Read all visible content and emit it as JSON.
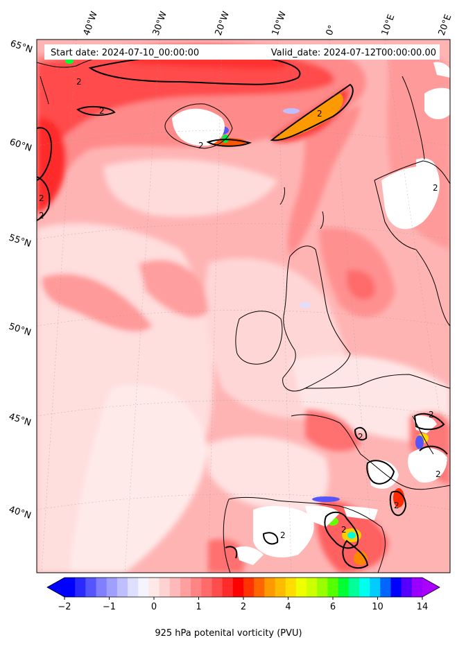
{
  "header": {
    "start_date": "Start date: 2024-07-10_00:00:00",
    "valid_date": "Valid_date: 2024-07-12T00:00:00.00"
  },
  "lon_labels": [
    "40°W",
    "30°W",
    "20°W",
    "10°W",
    "0°",
    "10°E",
    "20°E"
  ],
  "lat_labels": [
    "65°N",
    "60°N",
    "55°N",
    "50°N",
    "45°N",
    "40°N"
  ],
  "contour_label": "2",
  "colorbar": {
    "title": "925 hPa potenital vorticity (PVU)",
    "tick_labels": [
      "−2",
      "−1",
      "0",
      "1",
      "2",
      "4",
      "6",
      "10",
      "14"
    ],
    "colors": [
      "#0000ff",
      "#2a2aff",
      "#5555ff",
      "#7f7fff",
      "#9f9fff",
      "#bfbfff",
      "#dedeff",
      "#f4f4ff",
      "#ffe8e8",
      "#ffd2d2",
      "#ffb9b9",
      "#ff9f9f",
      "#ff8484",
      "#ff6a6a",
      "#ff4d4d",
      "#ff2a2a",
      "#ff0000",
      "#ff3300",
      "#ff6600",
      "#ff9900",
      "#ffbb00",
      "#ffdd00",
      "#eeff00",
      "#ccff00",
      "#99ff00",
      "#55ff00",
      "#00ff33",
      "#00ff99",
      "#00ffee",
      "#00ccff",
      "#0066ff",
      "#0000ff",
      "#5500ff",
      "#9900ff"
    ],
    "under_color": "#0000ff",
    "over_color": "#aa00ff"
  }
}
